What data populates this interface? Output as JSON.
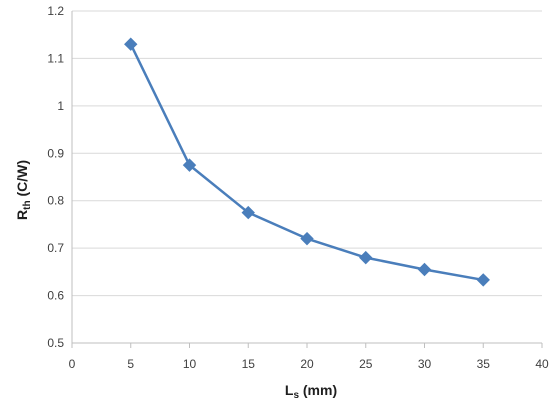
{
  "chart_data": {
    "type": "line",
    "title": "",
    "xlabel": {
      "main": "L",
      "sub": "s",
      "suffix": " (mm)"
    },
    "ylabel": {
      "main": "R",
      "sub": "th",
      "suffix": " (C/W)"
    },
    "xlim": [
      0,
      40
    ],
    "ylim": [
      0.5,
      1.2
    ],
    "x_ticks": [
      0,
      5,
      10,
      15,
      20,
      25,
      30,
      35,
      40
    ],
    "x_tick_labels": [
      "0",
      "5",
      "10",
      "15",
      "20",
      "25",
      "30",
      "35",
      "40"
    ],
    "y_ticks": [
      0.5,
      0.6,
      0.7,
      0.8,
      0.9,
      1.0,
      1.1,
      1.2
    ],
    "y_tick_labels": [
      "0.5",
      "0.6",
      "0.7",
      "0.8",
      "0.9",
      "1",
      "1.1",
      "1.2"
    ],
    "grid": "horizontal",
    "legend": "none",
    "series": [
      {
        "marker": "diamond",
        "color": "#4a7ebb",
        "x": [
          5,
          10,
          15,
          20,
          25,
          30,
          35
        ],
        "y": [
          1.13,
          0.875,
          0.775,
          0.72,
          0.68,
          0.655,
          0.633
        ]
      }
    ]
  }
}
